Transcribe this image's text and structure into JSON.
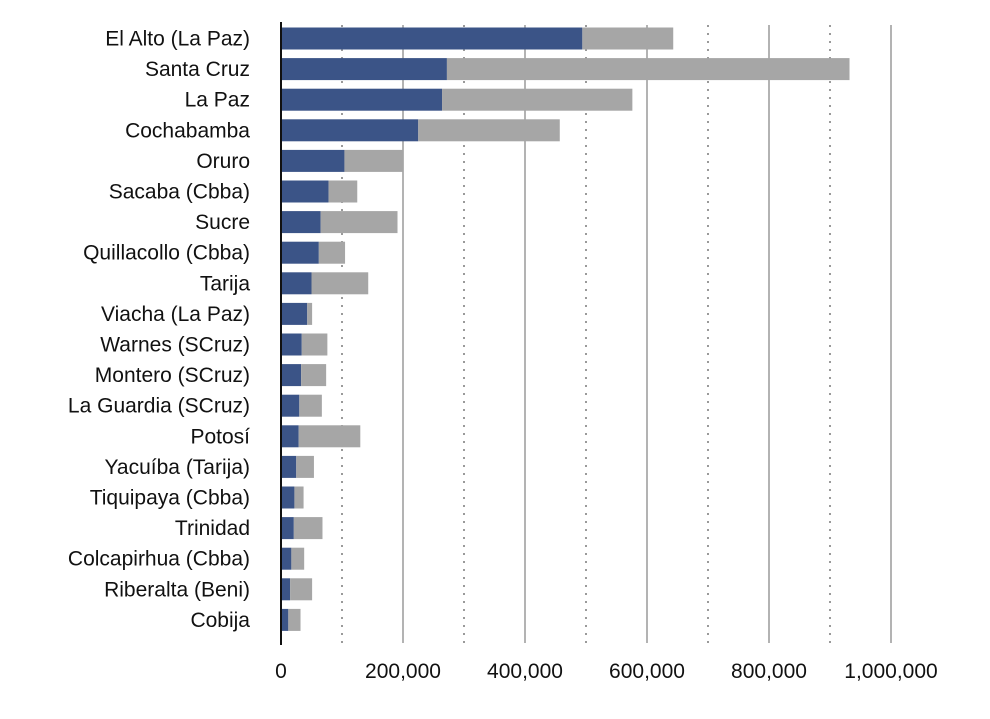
{
  "chart_data": {
    "type": "bar",
    "orientation": "horizontal",
    "stacked": true,
    "categories": [
      "El Alto (La Paz)",
      "Santa Cruz",
      "La Paz",
      "Cochabamba",
      "Oruro",
      "Sacaba (Cbba)",
      "Sucre",
      "Quillacollo (Cbba)",
      "Tarija",
      "Viacha (La Paz)",
      "Warnes (SCruz)",
      "Montero (SCruz)",
      "La Guardia (SCruz)",
      "Potosí",
      "Yacuíba (Tarija)",
      "Tiquipaya (Cbba)",
      "Trinidad",
      "Colcapirhua (Cbba)",
      "Riberalta (Beni)",
      "Cobija"
    ],
    "series": [
      {
        "color": "#3b5487",
        "values": [
          494000,
          272000,
          264000,
          225000,
          104000,
          78000,
          65000,
          62000,
          50000,
          43000,
          34000,
          33000,
          30000,
          29000,
          25000,
          22000,
          21000,
          17000,
          15000,
          12000
        ]
      },
      {
        "color": "#a6a6a6",
        "values": [
          149000,
          660000,
          312000,
          232000,
          96000,
          47000,
          126000,
          43000,
          93000,
          8000,
          42000,
          41000,
          37000,
          101000,
          29000,
          15000,
          47000,
          21000,
          36000,
          20000
        ]
      }
    ],
    "x_ticks": [
      0,
      200000,
      400000,
      600000,
      800000,
      1000000
    ],
    "x_tick_labels": [
      "0",
      "200,000",
      "400,000",
      "600,000",
      "800,000",
      "1,000,000"
    ],
    "xlim": [
      0,
      1000000
    ],
    "grid": {
      "major": "solid gray vertical lines at each labeled tick",
      "minor": "dotted gray vertical lines midway between ticks"
    },
    "title": "",
    "xlabel": "",
    "ylabel": "",
    "legend": "none"
  }
}
